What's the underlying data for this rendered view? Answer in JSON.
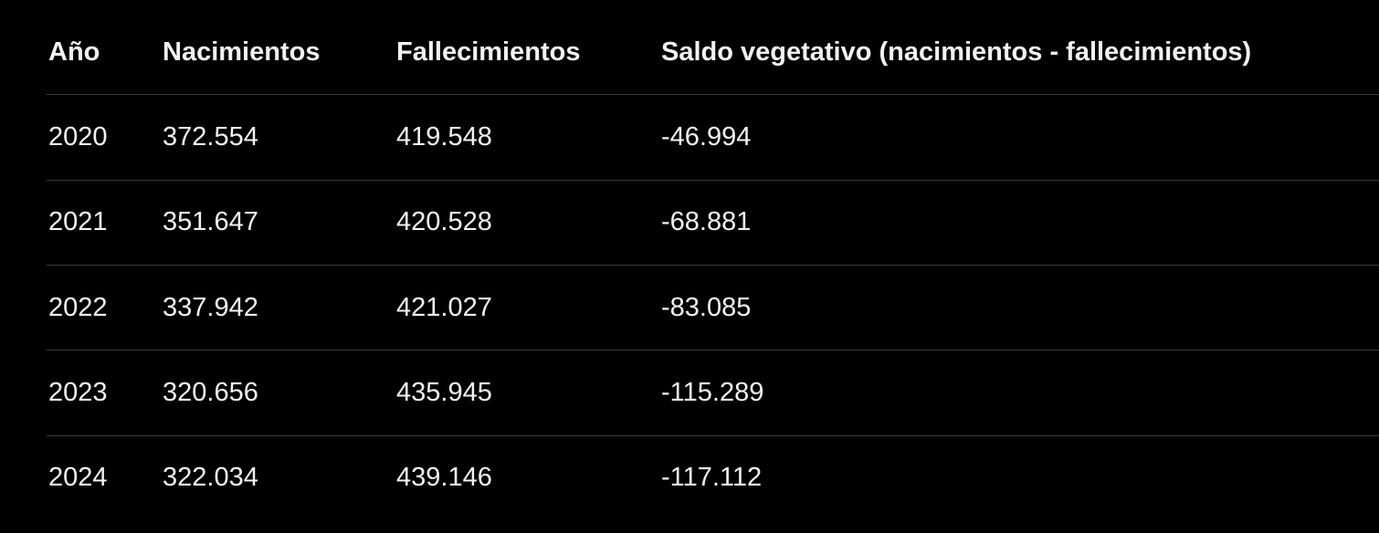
{
  "table": {
    "header": [
      "Año",
      "Nacimientos",
      "Fallecimientos",
      "Saldo vegetativo (nacimientos - fallecimientos)"
    ],
    "rows": [
      [
        "2020",
        "372.554",
        "419.548",
        "-46.994"
      ],
      [
        "2021",
        "351.647",
        "420.528",
        "-68.881"
      ],
      [
        "2022",
        "337.942",
        "421.027",
        "-83.085"
      ],
      [
        "2023",
        "320.656",
        "435.945",
        "-115.289"
      ],
      [
        "2024",
        "322.034",
        "439.146",
        "-117.112"
      ]
    ]
  }
}
